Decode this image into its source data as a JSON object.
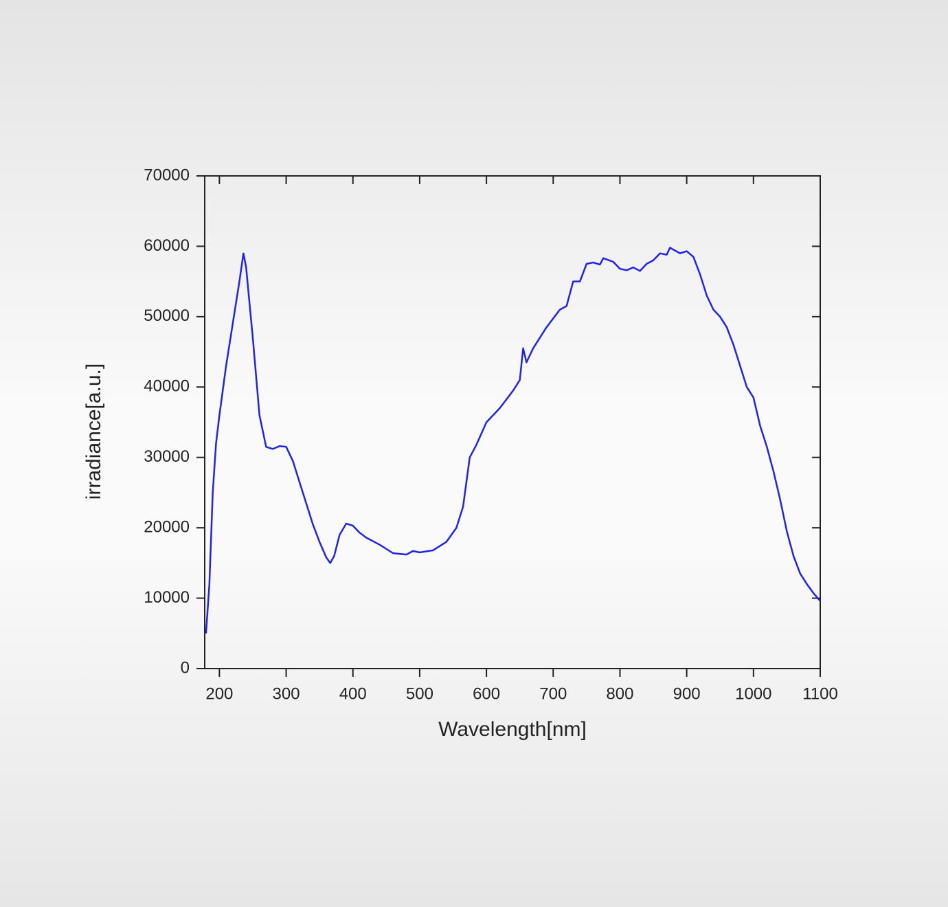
{
  "chart_data": {
    "type": "line",
    "xlabel": "Wavelength[nm]",
    "ylabel": "irradiance[a.u.]",
    "xlim": [
      178,
      1100
    ],
    "xticks": [
      200,
      300,
      400,
      500,
      600,
      700,
      800,
      900,
      1000,
      1100
    ],
    "ylim": [
      0,
      70000
    ],
    "yticks": [
      0,
      10000,
      20000,
      30000,
      40000,
      50000,
      60000,
      70000
    ],
    "grid": false,
    "series": [
      {
        "name": "irradiance",
        "color": "#2222ee",
        "x": [
          180,
          185,
          190,
          195,
          200,
          210,
          220,
          230,
          236,
          240,
          250,
          260,
          270,
          280,
          290,
          300,
          310,
          320,
          330,
          340,
          350,
          360,
          366,
          372,
          380,
          390,
          400,
          410,
          420,
          440,
          460,
          480,
          490,
          500,
          520,
          540,
          555,
          565,
          575,
          585,
          600,
          620,
          640,
          650,
          655,
          660,
          670,
          690,
          710,
          720,
          730,
          740,
          750,
          760,
          770,
          775,
          790,
          800,
          810,
          820,
          830,
          840,
          850,
          860,
          870,
          875,
          890,
          900,
          910,
          920,
          930,
          940,
          950,
          960,
          970,
          980,
          990,
          1000,
          1010,
          1020,
          1030,
          1040,
          1050,
          1060,
          1070,
          1080,
          1090,
          1100
        ],
        "values": [
          5000,
          12000,
          25000,
          32000,
          36000,
          43000,
          49000,
          55000,
          59000,
          57000,
          47000,
          36000,
          31500,
          31200,
          31600,
          31500,
          29500,
          26500,
          23500,
          20500,
          18000,
          15800,
          15000,
          16000,
          19000,
          20600,
          20300,
          19300,
          18600,
          17600,
          16400,
          16200,
          16700,
          16500,
          16800,
          18000,
          20000,
          23000,
          30000,
          31800,
          35000,
          37000,
          39500,
          41000,
          45500,
          43500,
          45500,
          48500,
          51000,
          51500,
          55000,
          55000,
          57500,
          57700,
          57400,
          58300,
          57800,
          56800,
          56600,
          57000,
          56500,
          57500,
          58000,
          59000,
          58800,
          59800,
          59000,
          59300,
          58500,
          56000,
          53000,
          51000,
          50000,
          48500,
          46000,
          43000,
          40000,
          38500,
          34500,
          31500,
          28000,
          24000,
          19500,
          16000,
          13500,
          12000,
          10700,
          9600
        ]
      }
    ]
  }
}
